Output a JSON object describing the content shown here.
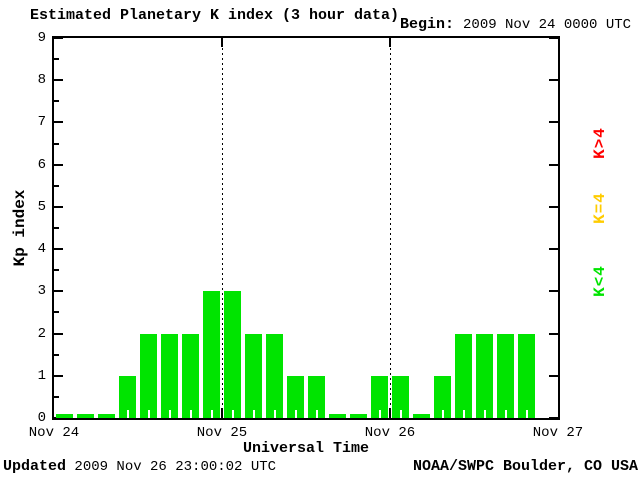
{
  "title": "Estimated Planetary K index (3 hour data)",
  "begin": {
    "label": "Begin:",
    "value": "2009 Nov 24 0000 UTC"
  },
  "footer": {
    "updated_label": "Updated",
    "updated_time": "2009 Nov 26 23:00:02 UTC",
    "source": "NOAA/SWPC Boulder, CO USA"
  },
  "legend": [
    {
      "label": "K>4",
      "color": "#ff0000"
    },
    {
      "label": "K=4",
      "color": "#ffcc00"
    },
    {
      "label": "K<4",
      "color": "#00e400"
    }
  ],
  "colors": {
    "bar_green": "#00e400",
    "axis": "#000000",
    "background": "#ffffff"
  },
  "chart_data": {
    "type": "bar",
    "title": "Estimated Planetary K index (3 hour data)",
    "xlabel": "Universal Time",
    "ylabel": "Kp index",
    "ylim": [
      0,
      9
    ],
    "yticks": [
      0,
      1,
      2,
      3,
      4,
      5,
      6,
      7,
      8,
      9
    ],
    "hours_per_bar": 3,
    "bars_per_day": 8,
    "x_day_labels": [
      "Nov 24",
      "Nov 25",
      "Nov 26",
      "Nov 27"
    ],
    "days": [
      {
        "date": "Nov 24",
        "kp": [
          0,
          0,
          0,
          1,
          2,
          2,
          2,
          3
        ]
      },
      {
        "date": "Nov 25",
        "kp": [
          3,
          2,
          2,
          1,
          1,
          0,
          0,
          1
        ]
      },
      {
        "date": "Nov 26",
        "kp": [
          1,
          0,
          1,
          2,
          2,
          2,
          2
        ]
      }
    ],
    "bar_color": "#00e400",
    "grid": "dotted vertical lines at day boundaries",
    "legend_position": "right, rotated 90deg"
  }
}
